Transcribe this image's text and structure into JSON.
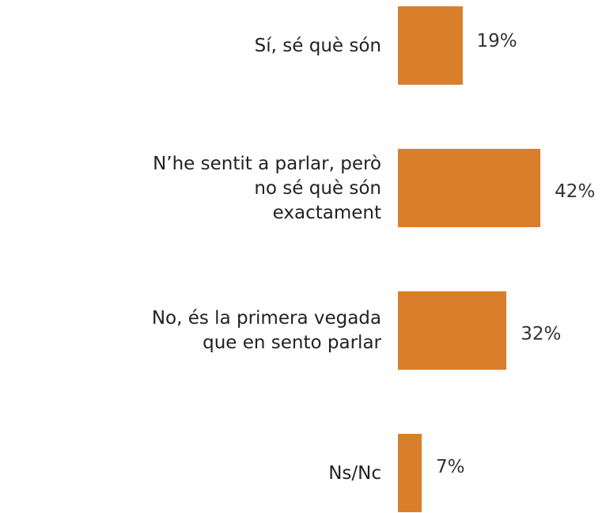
{
  "chart_data": {
    "type": "bar",
    "orientation": "horizontal",
    "categories": [
      "Sí, sé què són",
      "N’he sentit a parlar, però no sé què són exactament",
      "No, és la primera vegada que en sento parlar",
      "Ns/Nc"
    ],
    "values": [
      19,
      42,
      32,
      7
    ],
    "value_labels": [
      "19%",
      "42%",
      "32%",
      "7%"
    ],
    "color": "#d97f2b"
  }
}
